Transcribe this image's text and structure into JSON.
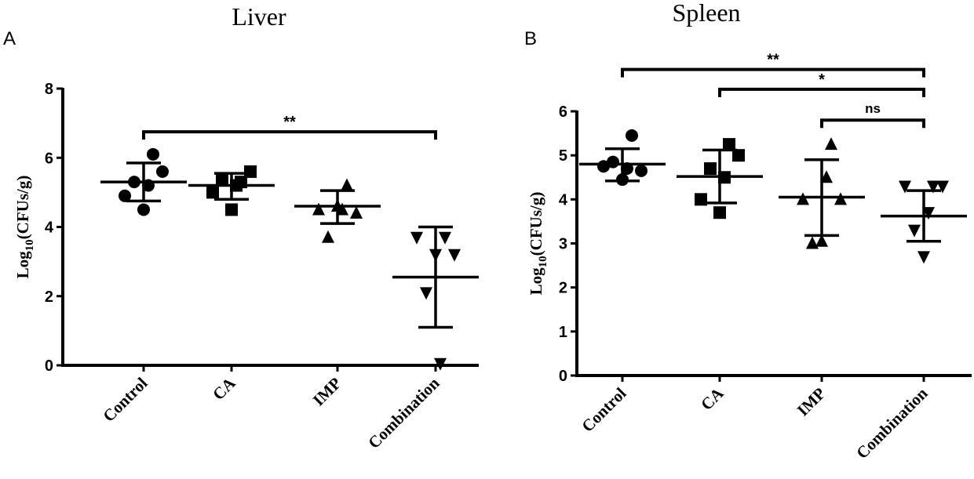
{
  "chart_data": [
    {
      "type": "scatter",
      "panel_label": "A",
      "title": "Liver",
      "ylabel": "Log10(CFUs/g)",
      "ylabel_main": "Log",
      "ylabel_sub": "10",
      "ylabel_rest": "(CFUs/g)",
      "ylim": [
        0,
        8
      ],
      "yticks": [
        "0",
        "2",
        "4",
        "6",
        "8"
      ],
      "categories": [
        "Control",
        "CA",
        "IMP",
        "Combination"
      ],
      "markers": [
        "circle",
        "square",
        "triangle-up",
        "triangle-down"
      ],
      "series": [
        {
          "points": [
            4.9,
            5.3,
            4.5,
            6.1,
            5.6,
            5.2
          ],
          "mean": 5.3,
          "sd_low": 4.75,
          "sd_high": 5.85
        },
        {
          "points": [
            5.0,
            5.4,
            4.5,
            5.3,
            5.6,
            5.2
          ],
          "mean": 5.2,
          "sd_low": 4.8,
          "sd_high": 5.55
        },
        {
          "points": [
            4.5,
            3.7,
            4.6,
            5.2,
            4.4,
            4.5
          ],
          "mean": 4.6,
          "sd_low": 4.1,
          "sd_high": 5.05
        },
        {
          "points": [
            3.7,
            2.1,
            3.2,
            3.7,
            3.2,
            0.05
          ],
          "mean": 2.55,
          "sd_low": 1.1,
          "sd_high": 4.0
        }
      ],
      "significance": [
        {
          "from": 0,
          "to": 3,
          "label": "**",
          "y": 6.75
        }
      ]
    },
    {
      "type": "scatter",
      "panel_label": "B",
      "title": "Spleen",
      "ylabel": "Log10(CFUs/g)",
      "ylabel_main": "Log",
      "ylabel_sub": "10",
      "ylabel_rest": "(CFUs/g)",
      "ylim": [
        0,
        6
      ],
      "yticks": [
        "0",
        "1",
        "2",
        "3",
        "4",
        "5",
        "6"
      ],
      "categories": [
        "Control",
        "CA",
        "IMP",
        "Combination"
      ],
      "markers": [
        "circle",
        "square",
        "triangle-up",
        "triangle-down"
      ],
      "series": [
        {
          "points": [
            4.75,
            4.85,
            4.45,
            5.45,
            4.65,
            4.7
          ],
          "mean": 4.8,
          "sd_low": 4.42,
          "sd_high": 5.15
        },
        {
          "points": [
            4.0,
            4.7,
            3.7,
            5.25,
            5.0,
            4.5
          ],
          "mean": 4.52,
          "sd_low": 3.92,
          "sd_high": 5.12
        },
        {
          "points": [
            4.0,
            3.0,
            3.05,
            5.25,
            4.0,
            4.5
          ],
          "mean": 4.05,
          "sd_low": 3.18,
          "sd_high": 4.9
        },
        {
          "points": [
            4.3,
            3.3,
            2.7,
            4.3,
            4.3,
            3.7
          ],
          "mean": 3.62,
          "sd_low": 3.05,
          "sd_high": 4.2
        }
      ],
      "significance": [
        {
          "from": 0,
          "to": 3,
          "label": "**",
          "y": 6.95
        },
        {
          "from": 1,
          "to": 3,
          "label": "*",
          "y": 6.5
        },
        {
          "from": 2,
          "to": 3,
          "label": "ns",
          "y": 5.8
        }
      ]
    }
  ]
}
